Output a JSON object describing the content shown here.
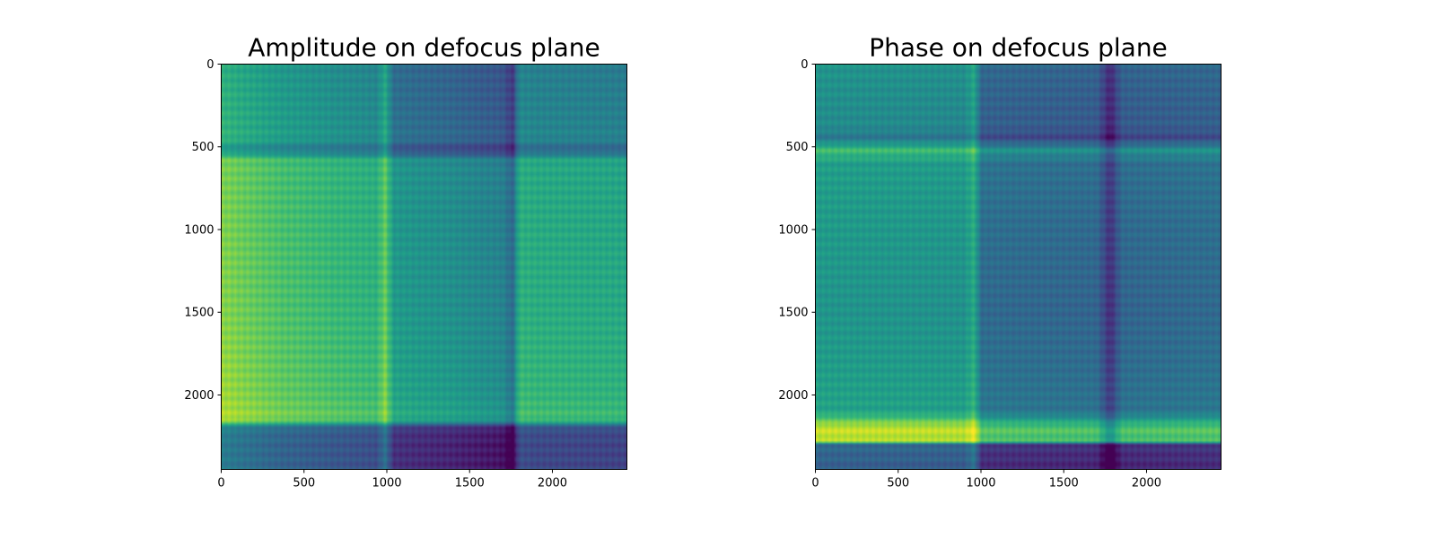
{
  "chart_data": [
    {
      "type": "heatmap",
      "title": "Amplitude on defocus plane",
      "xlabel": "",
      "ylabel": "",
      "xlim": [
        0,
        2450
      ],
      "ylim": [
        2450,
        0
      ],
      "x_ticks": [
        0,
        500,
        1000,
        1500,
        2000
      ],
      "y_ticks": [
        0,
        500,
        1000,
        1500,
        2000
      ],
      "colormap": "viridis",
      "grid": false,
      "bands": {
        "x": [
          [
            0,
            0.78
          ],
          [
            120,
            0.74
          ],
          [
            350,
            0.68
          ],
          [
            700,
            0.63
          ],
          [
            940,
            0.6
          ],
          [
            990,
            0.74
          ],
          [
            1040,
            0.5
          ],
          [
            1400,
            0.46
          ],
          [
            1700,
            0.41
          ],
          [
            1760,
            0.3
          ],
          [
            1800,
            0.6
          ],
          [
            1900,
            0.58
          ],
          [
            2450,
            0.56
          ]
        ],
        "y": [
          [
            0,
            -0.15
          ],
          [
            450,
            -0.12
          ],
          [
            520,
            -0.25
          ],
          [
            580,
            0.02
          ],
          [
            1500,
            0.04
          ],
          [
            2000,
            0.08
          ],
          [
            2150,
            0.12
          ],
          [
            2200,
            -0.33
          ],
          [
            2300,
            -0.36
          ],
          [
            2450,
            -0.36
          ]
        ]
      }
    },
    {
      "type": "heatmap",
      "title": "Phase on defocus plane",
      "xlabel": "",
      "ylabel": "",
      "xlim": [
        0,
        2450
      ],
      "ylim": [
        2450,
        0
      ],
      "x_ticks": [
        0,
        500,
        1000,
        1500,
        2000
      ],
      "y_ticks": [
        0,
        500,
        1000,
        1500,
        2000
      ],
      "colormap": "viridis",
      "grid": false,
      "bands": {
        "x": [
          [
            0,
            0.52
          ],
          [
            900,
            0.5
          ],
          [
            960,
            0.6
          ],
          [
            1000,
            0.34
          ],
          [
            1700,
            0.32
          ],
          [
            1780,
            0.12
          ],
          [
            1850,
            0.32
          ],
          [
            2450,
            0.34
          ]
        ],
        "y": [
          [
            0,
            0.0
          ],
          [
            380,
            -0.04
          ],
          [
            450,
            -0.12
          ],
          [
            520,
            0.18
          ],
          [
            600,
            0.04
          ],
          [
            1500,
            0.0
          ],
          [
            2100,
            0.06
          ],
          [
            2200,
            0.4
          ],
          [
            2280,
            0.38
          ],
          [
            2300,
            -0.18
          ],
          [
            2450,
            -0.22
          ]
        ]
      }
    }
  ]
}
